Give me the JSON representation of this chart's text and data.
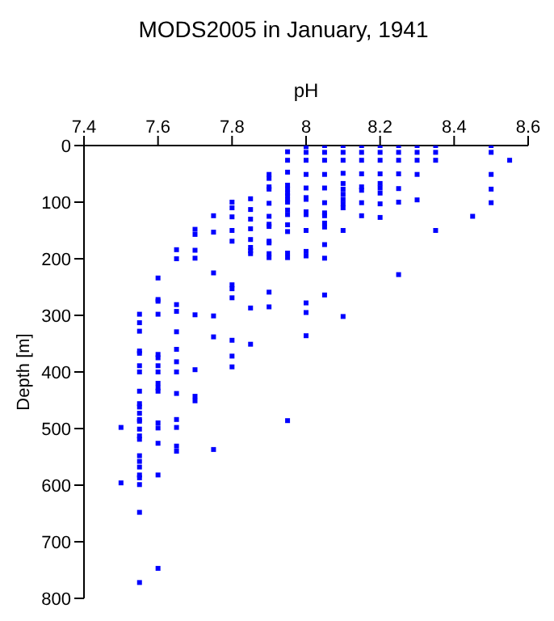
{
  "chart_data": {
    "type": "scatter",
    "title": "MODS2005 in January, 1941",
    "xlabel": "pH",
    "ylabel": "Depth [m]",
    "xlim": [
      7.4,
      8.6
    ],
    "xticks": [
      7.4,
      7.6,
      7.8,
      8,
      8.2,
      8.4,
      8.6
    ],
    "ylim": [
      800,
      0
    ],
    "yticks": [
      0,
      100,
      200,
      300,
      400,
      500,
      600,
      700,
      800
    ],
    "grid": false,
    "marker": "square",
    "series": [
      {
        "color": "#0000ff",
        "x": [
          7.5,
          7.5,
          7.55,
          7.55,
          7.55,
          7.55,
          7.55,
          7.55,
          7.55,
          7.55,
          7.55,
          7.55,
          7.55,
          7.55,
          7.55,
          7.55,
          7.55,
          7.55,
          7.55,
          7.55,
          7.55,
          7.55,
          7.55,
          7.55,
          7.55,
          7.55,
          7.6,
          7.6,
          7.6,
          7.6,
          7.6,
          7.6,
          7.6,
          7.6,
          7.6,
          7.6,
          7.6,
          7.6,
          7.6,
          7.6,
          7.6,
          7.6,
          7.65,
          7.65,
          7.65,
          7.65,
          7.65,
          7.65,
          7.65,
          7.65,
          7.65,
          7.65,
          7.65,
          7.65,
          7.65,
          7.7,
          7.7,
          7.7,
          7.7,
          7.7,
          7.7,
          7.7,
          7.7,
          7.75,
          7.75,
          7.75,
          7.75,
          7.75,
          7.75,
          7.8,
          7.8,
          7.8,
          7.8,
          7.8,
          7.8,
          7.8,
          7.8,
          7.8,
          7.8,
          7.8,
          7.85,
          7.85,
          7.85,
          7.85,
          7.85,
          7.85,
          7.85,
          7.85,
          7.85,
          7.85,
          7.9,
          7.9,
          7.9,
          7.9,
          7.9,
          7.9,
          7.9,
          7.9,
          7.9,
          7.9,
          7.9,
          7.9,
          7.9,
          7.9,
          7.95,
          7.95,
          7.95,
          7.95,
          7.95,
          7.95,
          7.95,
          7.95,
          7.95,
          7.95,
          7.95,
          7.95,
          7.95,
          7.95,
          7.95,
          7.95,
          8.0,
          8.0,
          8.0,
          8.0,
          8.0,
          8.0,
          8.0,
          8.0,
          8.0,
          8.0,
          8.0,
          8.0,
          8.0,
          8.0,
          8.0,
          8.05,
          8.05,
          8.05,
          8.05,
          8.05,
          8.05,
          8.05,
          8.05,
          8.05,
          8.05,
          8.05,
          8.05,
          8.05,
          8.1,
          8.1,
          8.1,
          8.1,
          8.1,
          8.1,
          8.1,
          8.1,
          8.1,
          8.1,
          8.1,
          8.1,
          8.15,
          8.15,
          8.15,
          8.15,
          8.15,
          8.15,
          8.15,
          8.15,
          8.2,
          8.2,
          8.2,
          8.2,
          8.2,
          8.2,
          8.2,
          8.2,
          8.2,
          8.25,
          8.25,
          8.25,
          8.25,
          8.25,
          8.25,
          8.25,
          8.3,
          8.3,
          8.3,
          8.3,
          8.3,
          8.35,
          8.35,
          8.35,
          8.35,
          8.45,
          8.5,
          8.5,
          8.5,
          8.5,
          8.5,
          8.55
        ],
        "values": [
          498,
          596,
          298,
          313,
          328,
          363,
          367,
          389,
          400,
          434,
          456,
          462,
          473,
          484,
          487,
          501,
          513,
          519,
          548,
          558,
          568,
          582,
          587,
          599,
          648,
          772,
          234,
          272,
          275,
          298,
          369,
          375,
          389,
          400,
          420,
          428,
          434,
          490,
          499,
          526,
          582,
          747,
          184,
          200,
          281,
          293,
          329,
          360,
          382,
          400,
          438,
          484,
          498,
          531,
          540,
          148,
          157,
          185,
          199,
          299,
          396,
          443,
          451,
          124,
          153,
          225,
          301,
          338,
          537,
          100,
          110,
          126,
          150,
          169,
          246,
          253,
          269,
          344,
          372,
          391,
          94,
          113,
          130,
          147,
          166,
          180,
          186,
          191,
          287,
          351,
          51,
          58,
          73,
          77,
          102,
          125,
          139,
          143,
          169,
          172,
          191,
          198,
          259,
          285,
          11,
          26,
          47,
          70,
          77,
          84,
          89,
          96,
          100,
          114,
          122,
          140,
          152,
          190,
          198,
          486,
          2,
          12,
          26,
          51,
          75,
          92,
          95,
          117,
          122,
          150,
          187,
          195,
          278,
          295,
          336,
          0,
          12,
          26,
          51,
          75,
          101,
          119,
          124,
          137,
          144,
          175,
          199,
          264,
          0,
          12,
          26,
          49,
          67,
          77,
          86,
          95,
          103,
          110,
          150,
          302,
          0,
          12,
          26,
          50,
          73,
          79,
          101,
          124,
          0,
          12,
          26,
          50,
          67,
          75,
          84,
          103,
          127,
          0,
          12,
          26,
          50,
          76,
          100,
          228,
          0,
          12,
          26,
          51,
          96,
          0,
          12,
          26,
          150,
          125,
          0,
          12,
          51,
          77,
          101,
          26
        ]
      }
    ]
  }
}
